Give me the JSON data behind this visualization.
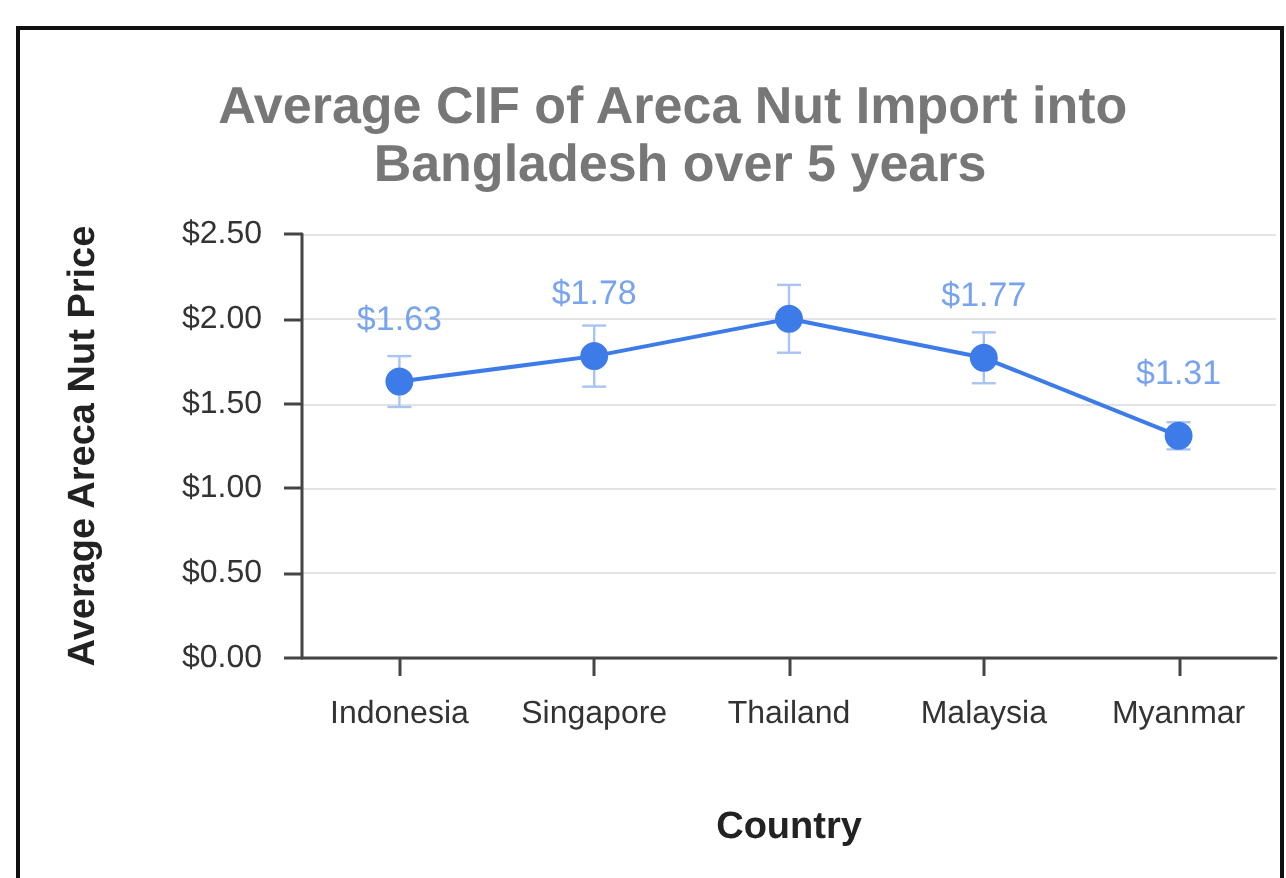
{
  "chart_data": {
    "type": "line",
    "title": "Average CIF of Areca Nut Import into Bangladesh over 5 years",
    "xlabel": "Country",
    "ylabel": "Average Areca Nut Price",
    "categories": [
      "Indonesia",
      "Singapore",
      "Thailand",
      "Malaysia",
      "Myanmar"
    ],
    "series": [
      {
        "color": "#3d7ce8",
        "values": [
          1.63,
          1.78,
          2.0,
          1.77,
          1.31
        ],
        "errors": [
          0.15,
          0.18,
          0.2,
          0.15,
          0.08
        ],
        "value_labels": [
          "$1.63",
          "$1.78",
          null,
          "$1.77",
          "$1.31"
        ]
      }
    ],
    "ylim": [
      0,
      2.5
    ],
    "yticks": [
      {
        "value": 0,
        "label": "$0.00"
      },
      {
        "value": 0.5,
        "label": "$0.50"
      },
      {
        "value": 1,
        "label": "$1.00"
      },
      {
        "value": 1.5,
        "label": "$1.50"
      },
      {
        "value": 2,
        "label": "$2.00"
      },
      {
        "value": 2.5,
        "label": "$2.50"
      }
    ],
    "grid": "y",
    "marker": "circle",
    "line_style": "solid"
  }
}
